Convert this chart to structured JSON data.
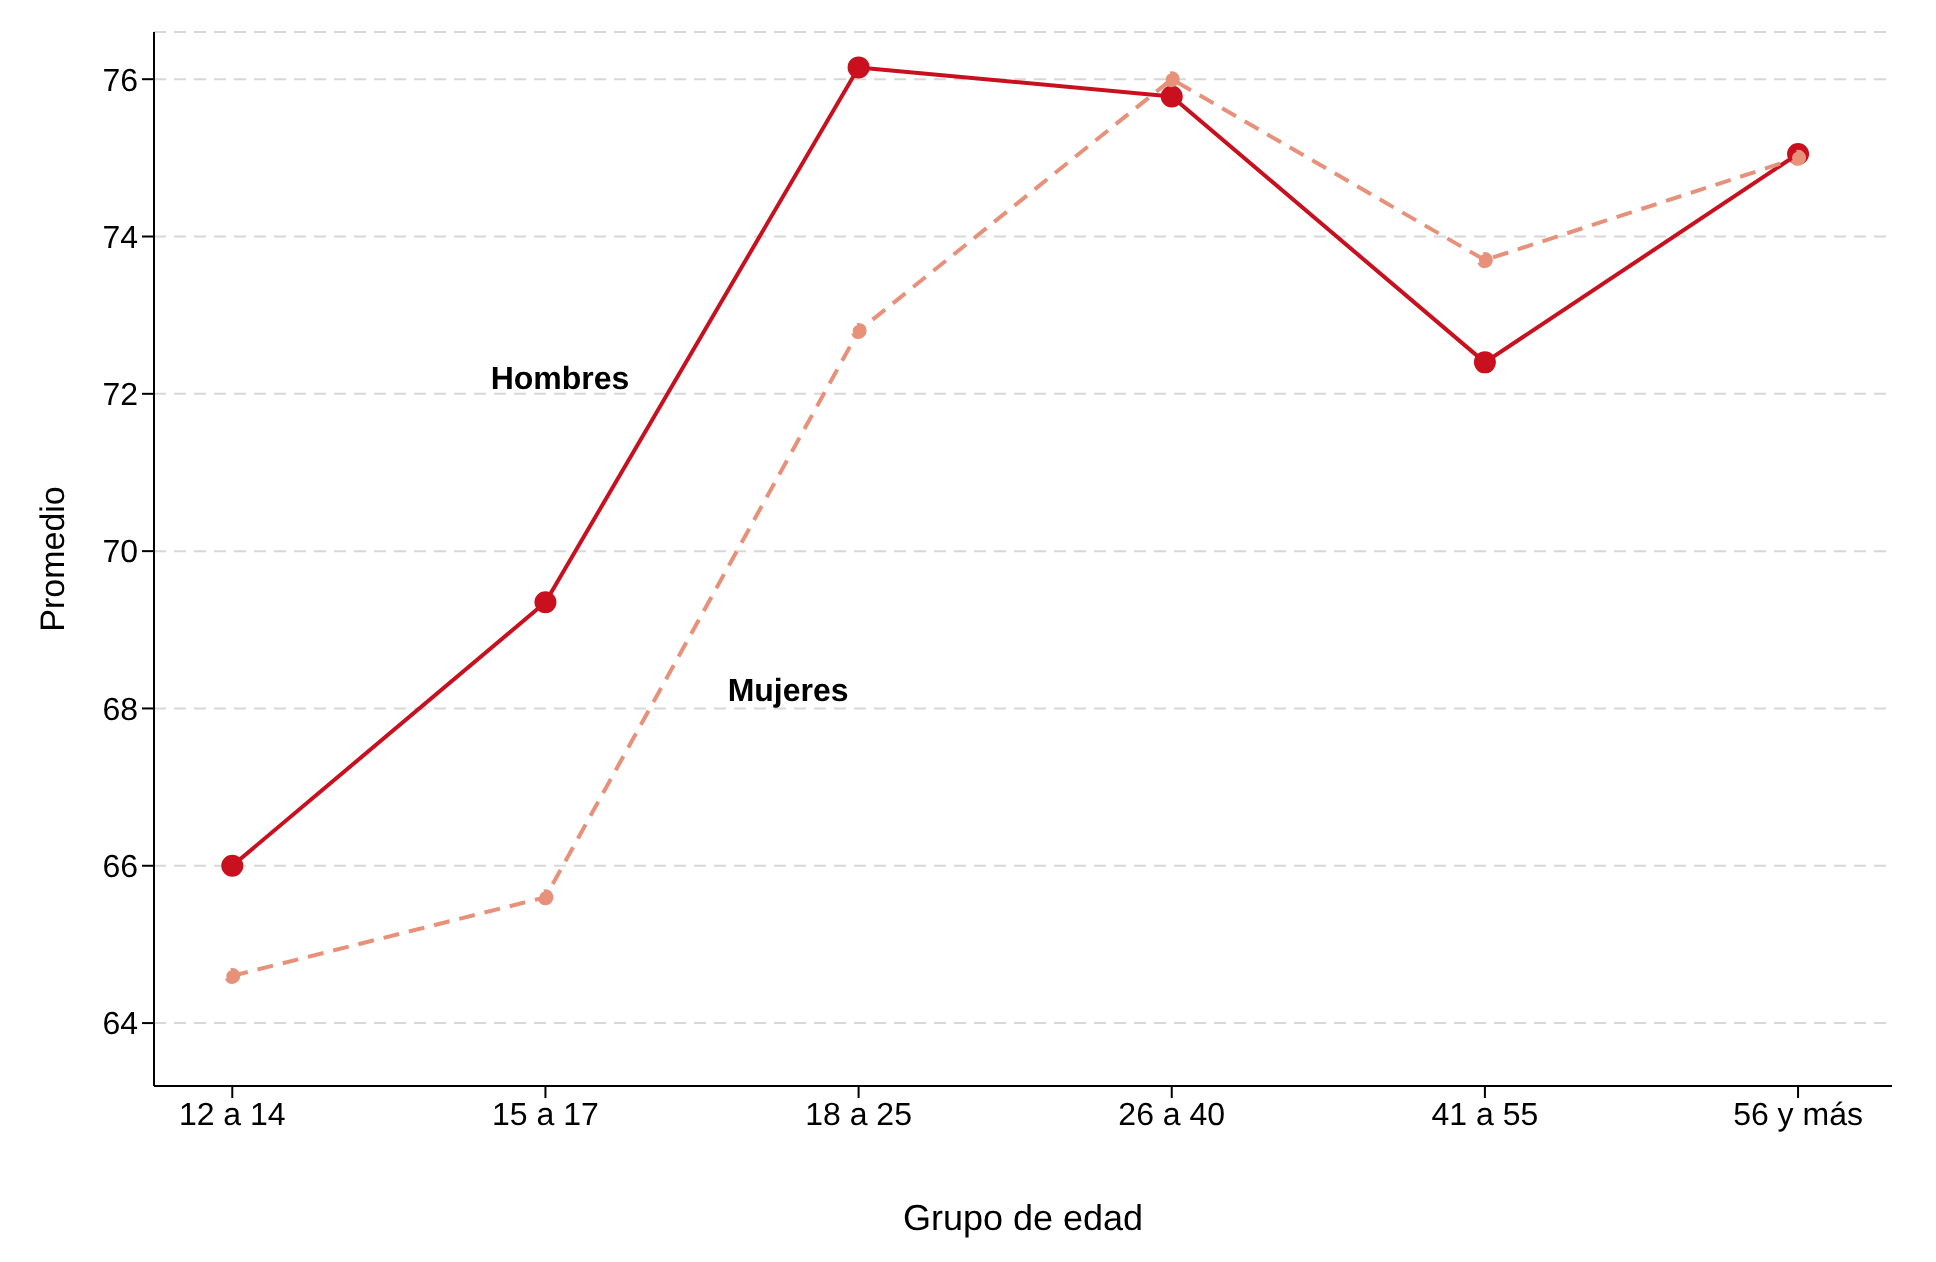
{
  "chart_data": {
    "type": "line",
    "xlabel": "Grupo de edad",
    "ylabel": "Promedio",
    "categories": [
      "12 a 14",
      "15 a 17",
      "18 a 25",
      "26 a 40",
      "41 a 55",
      "56 y más"
    ],
    "series": [
      {
        "name": "Hombres",
        "color": "#c8101e",
        "line_style": "solid",
        "values": [
          66.0,
          69.35,
          76.15,
          75.78,
          72.4,
          75.05
        ]
      },
      {
        "name": "Mujeres",
        "color": "#e8917a",
        "line_style": "dashed",
        "values": [
          64.6,
          65.6,
          72.8,
          76.0,
          73.7,
          75.0
        ]
      }
    ],
    "ylim": [
      63.2,
      76.6
    ],
    "yticks": [
      64,
      66,
      68,
      70,
      72,
      74,
      76
    ],
    "grid": "y",
    "marker": "circle",
    "legend": false
  }
}
